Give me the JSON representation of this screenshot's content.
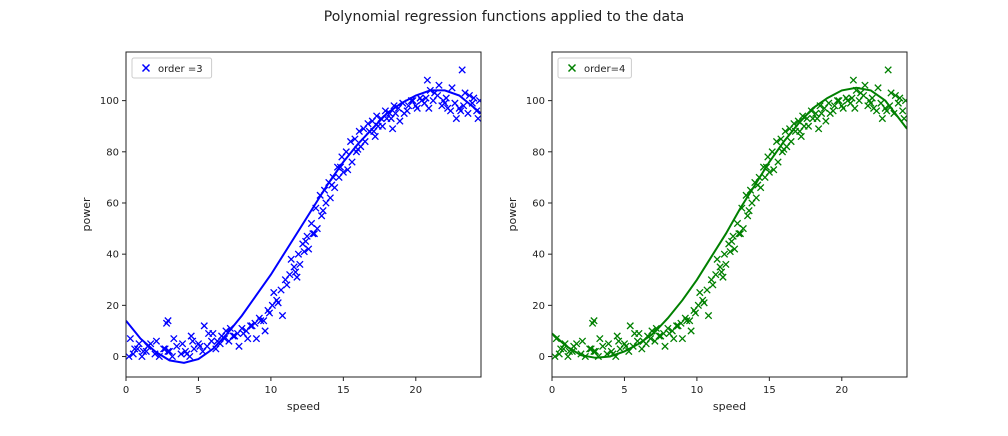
{
  "figure": {
    "title": "Polynomial regression functions applied to the data"
  },
  "chart_data": [
    {
      "type": "scatter",
      "title": "",
      "xlabel": "speed",
      "ylabel": "power",
      "xlim": [
        0,
        24.5
      ],
      "ylim": [
        -8,
        119
      ],
      "xticks": [
        0,
        5,
        10,
        15,
        20
      ],
      "yticks": [
        0,
        20,
        40,
        60,
        80,
        100
      ],
      "grid": false,
      "legend_position": "top-left",
      "color": "#0000ff",
      "series": [
        {
          "name": "order =3",
          "kind": "scatter",
          "marker": "x"
        },
        {
          "name": "",
          "kind": "line",
          "polynomial_order": 3
        }
      ],
      "fit_curve": {
        "x": [
          0,
          1,
          2,
          3,
          4,
          5,
          6,
          7,
          8,
          9,
          10,
          11,
          12,
          13,
          14,
          15,
          16,
          17,
          18,
          19,
          20,
          21,
          22,
          23,
          24.5
        ],
        "y": [
          14,
          7,
          2,
          -1.5,
          -2.5,
          -1,
          3,
          9,
          16,
          24,
          32,
          41,
          50,
          59,
          68,
          76,
          83,
          89,
          95,
          99,
          102,
          104,
          104,
          102,
          95
        ]
      }
    },
    {
      "type": "scatter",
      "title": "",
      "xlabel": "speed",
      "ylabel": "power",
      "xlim": [
        0,
        24.5
      ],
      "ylim": [
        -8,
        119
      ],
      "xticks": [
        0,
        5,
        10,
        15,
        20
      ],
      "yticks": [
        0,
        20,
        40,
        60,
        80,
        100
      ],
      "grid": false,
      "legend_position": "top-left",
      "color": "#008000",
      "series": [
        {
          "name": "order=4",
          "kind": "scatter",
          "marker": "x"
        },
        {
          "name": "",
          "kind": "line",
          "polynomial_order": 4
        }
      ],
      "fit_curve": {
        "x": [
          0,
          1,
          2,
          3,
          4,
          5,
          6,
          7,
          8,
          9,
          10,
          11,
          12,
          13,
          14,
          15,
          16,
          17,
          18,
          19,
          20,
          21,
          22,
          23,
          24.5
        ],
        "y": [
          9,
          4,
          0.5,
          -0.5,
          0,
          2,
          5,
          9,
          15,
          22,
          30,
          39,
          48,
          58,
          67,
          76,
          84,
          91,
          97,
          101,
          104,
          105,
          104,
          100,
          89
        ]
      }
    }
  ],
  "scatter_data": {
    "x": [
      0.2,
      0.5,
      0.8,
      1.1,
      1.4,
      1.7,
      2.0,
      2.3,
      2.6,
      2.9,
      3.2,
      3.5,
      3.8,
      4.1,
      4.4,
      4.7,
      5.0,
      5.3,
      5.6,
      5.9,
      6.2,
      6.5,
      6.8,
      7.1,
      7.4,
      7.7,
      8.0,
      8.3,
      8.6,
      8.9,
      9.2,
      9.5,
      9.8,
      10.1,
      10.4,
      10.7,
      11.0,
      11.3,
      11.6,
      11.9,
      12.2,
      12.5,
      12.8,
      13.1,
      13.4,
      13.7,
      14.0,
      14.3,
      14.6,
      14.9,
      15.2,
      15.5,
      15.8,
      16.1,
      16.4,
      16.7,
      17.0,
      17.3,
      17.6,
      17.9,
      18.2,
      18.5,
      18.8,
      19.1,
      19.4,
      19.7,
      20.0,
      20.3,
      20.6,
      20.9,
      21.2,
      21.5,
      21.8,
      22.1,
      22.4,
      22.7,
      23.0,
      23.3,
      23.6,
      23.9,
      24.2,
      0.3,
      0.9,
      1.5,
      2.1,
      2.7,
      3.3,
      3.9,
      4.5,
      5.1,
      5.7,
      6.3,
      6.9,
      7.5,
      8.1,
      8.7,
      9.3,
      9.9,
      10.5,
      11.1,
      11.7,
      12.3,
      12.9,
      13.5,
      14.1,
      14.7,
      15.3,
      15.9,
      16.5,
      17.1,
      17.7,
      18.3,
      18.9,
      19.5,
      20.1,
      20.7,
      21.3,
      21.9,
      22.5,
      23.1,
      23.7,
      24.3,
      1.2,
      2.8,
      4.6,
      6.0,
      7.8,
      9.0,
      10.2,
      11.4,
      12.6,
      13.2,
      13.8,
      14.4,
      15.0,
      16.2,
      17.4,
      18.6,
      19.8,
      21.0,
      22.2,
      23.4,
      24.4,
      0.6,
      3.0,
      5.4,
      7.2,
      8.4,
      9.6,
      10.8,
      12.0,
      13.0,
      14.2,
      15.6,
      16.8,
      18.0,
      19.2,
      20.4,
      21.6,
      22.8,
      24.0,
      2.9,
      4.2,
      6.6,
      11.8,
      12.4,
      13.6,
      14.8,
      16.0,
      17.2,
      18.4,
      20.8,
      22.0,
      23.2
    ],
    "y": [
      0,
      1,
      3,
      0,
      2,
      5,
      1,
      0,
      3,
      2,
      0,
      4,
      1,
      2,
      0,
      3,
      5,
      2,
      4,
      6,
      3,
      5,
      7,
      6,
      8,
      9,
      11,
      10,
      12,
      13,
      15,
      14,
      18,
      20,
      22,
      26,
      30,
      32,
      35,
      40,
      44,
      47,
      52,
      58,
      63,
      65,
      68,
      70,
      74,
      78,
      80,
      84,
      85,
      88,
      89,
      91,
      92,
      94,
      93,
      96,
      95,
      98,
      97,
      99,
      96,
      100,
      98,
      101,
      99,
      97,
      100,
      102,
      98,
      101,
      96,
      99,
      97,
      98,
      95,
      99,
      96,
      7,
      5,
      4,
      6,
      3,
      7,
      5,
      8,
      4,
      9,
      6,
      10,
      8,
      9,
      12,
      14,
      17,
      21,
      28,
      33,
      41,
      48,
      55,
      62,
      70,
      73,
      80,
      84,
      88,
      90,
      93,
      92,
      98,
      97,
      101,
      103,
      100,
      105,
      96,
      102,
      93,
      2,
      13,
      6,
      9,
      4,
      7,
      25,
      38,
      42,
      50,
      60,
      66,
      72,
      82,
      90,
      95,
      100,
      104,
      97,
      103,
      100,
      3,
      2,
      12,
      11,
      7,
      10,
      16,
      36,
      48,
      67,
      76,
      88,
      93,
      95,
      100,
      106,
      93,
      101,
      14,
      1,
      8,
      31,
      45,
      57,
      74,
      81,
      86,
      89,
      108,
      99,
      112
    ]
  }
}
